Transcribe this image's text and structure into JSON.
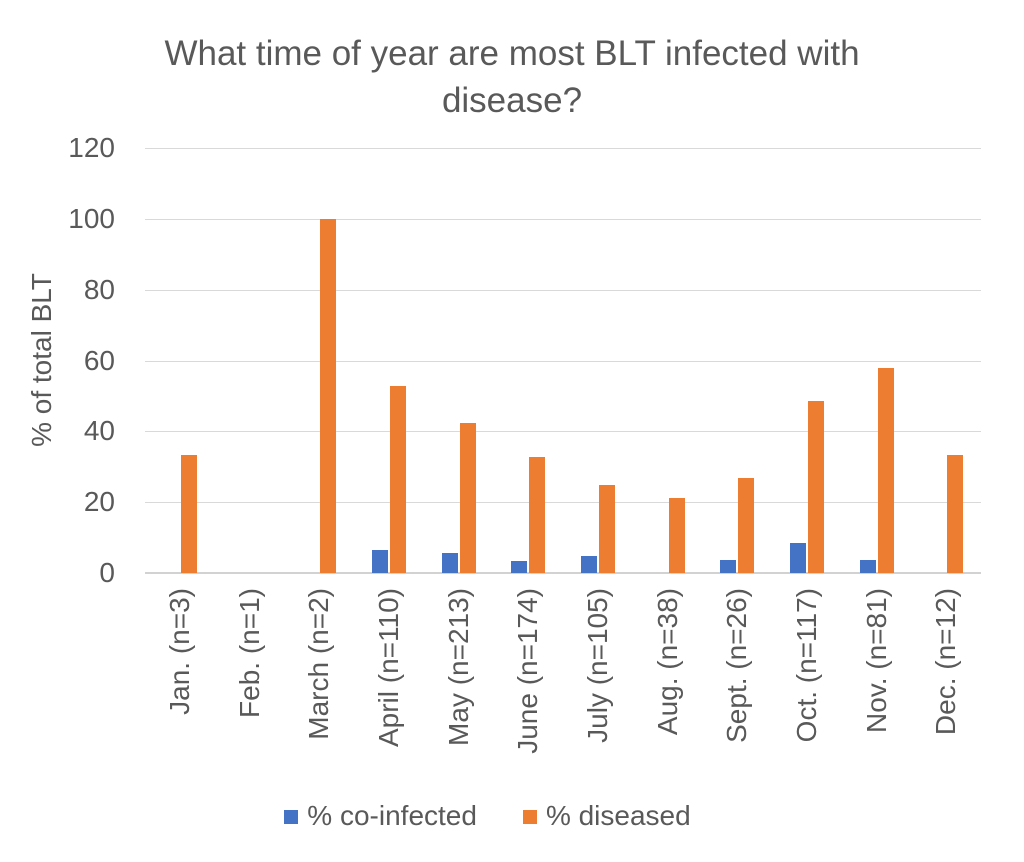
{
  "title": "What time of year are most BLT infected with disease?",
  "colors": {
    "co_infected": "#4472C4",
    "diseased": "#ED7D31",
    "text": "#595959",
    "gridline": "#D9D9D9"
  },
  "legend": {
    "items": [
      {
        "label": "% co-infected",
        "swatch_color": "#4472C4"
      },
      {
        "label": "% diseased",
        "swatch_color": "#ED7D31"
      }
    ]
  },
  "chart_data": {
    "type": "bar",
    "title": "What time of year are most BLT infected with disease?",
    "categories": [
      "Jan. (n=3)",
      "Feb. (n=1)",
      "March (n=2)",
      "April (n=110)",
      "May (n=213)",
      "June (n=174)",
      "July (n=105)",
      "Aug. (n=38)",
      "Sept. (n=26)",
      "Oct. (n=117)",
      "Nov. (n=81)",
      "Dec. (n=12)"
    ],
    "series": [
      {
        "name": "% co-infected",
        "color": "#4472C4",
        "values": [
          0,
          0,
          0,
          6.4,
          5.6,
          3.4,
          4.8,
          0,
          3.8,
          8.5,
          3.7,
          0
        ]
      },
      {
        "name": "% diseased",
        "color": "#ED7D31",
        "values": [
          33.3,
          0,
          100,
          52.7,
          42.3,
          32.8,
          24.8,
          21.1,
          26.9,
          48.7,
          58,
          33.3
        ]
      }
    ],
    "xlabel": "",
    "ylabel": "% of total BLT",
    "ylim": [
      0,
      120
    ],
    "yticks": [
      0,
      20,
      40,
      60,
      80,
      100,
      120
    ],
    "grid": true,
    "legend_position": "bottom"
  }
}
